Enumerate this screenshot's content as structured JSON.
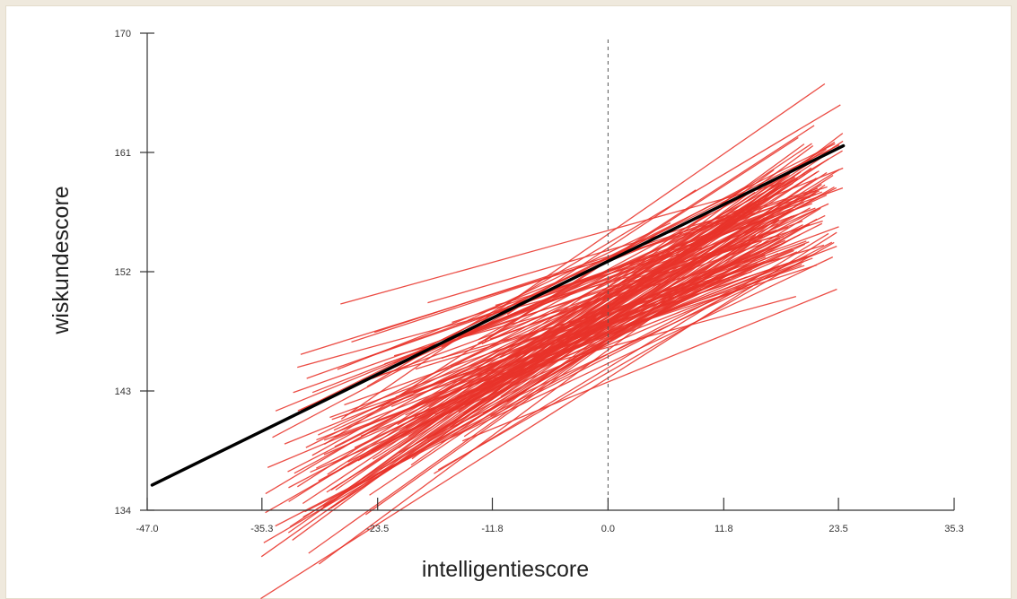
{
  "chart_data": {
    "type": "line",
    "title": "",
    "xlabel": "intelligentiescore",
    "ylabel": "wiskundescore",
    "xlim": [
      -47.0,
      35.3
    ],
    "ylim": [
      134,
      170
    ],
    "x_ticks": [
      "-47.0",
      "-35.3",
      "-23.5",
      "-11.8",
      "0.0",
      "11.8",
      "23.5",
      "35.3"
    ],
    "y_ticks": [
      "134",
      "143",
      "152",
      "161",
      "170"
    ],
    "reference_line": {
      "x": 0.0,
      "style": "dashed"
    },
    "overall_line": {
      "name": "",
      "color": "#000000",
      "x": [
        -46.5,
        24.0
      ],
      "y": [
        135.9,
        161.5
      ]
    },
    "group_lines": {
      "color": "#e8332a",
      "count": 160,
      "x_range": [
        -36.0,
        24.0
      ],
      "intercept_range": [
        146.0,
        160.5
      ],
      "slope_range": [
        0.2,
        0.56
      ]
    },
    "colors": {
      "red_lines": "#e8332a",
      "overall": "#000000",
      "axis": "#222222"
    }
  }
}
